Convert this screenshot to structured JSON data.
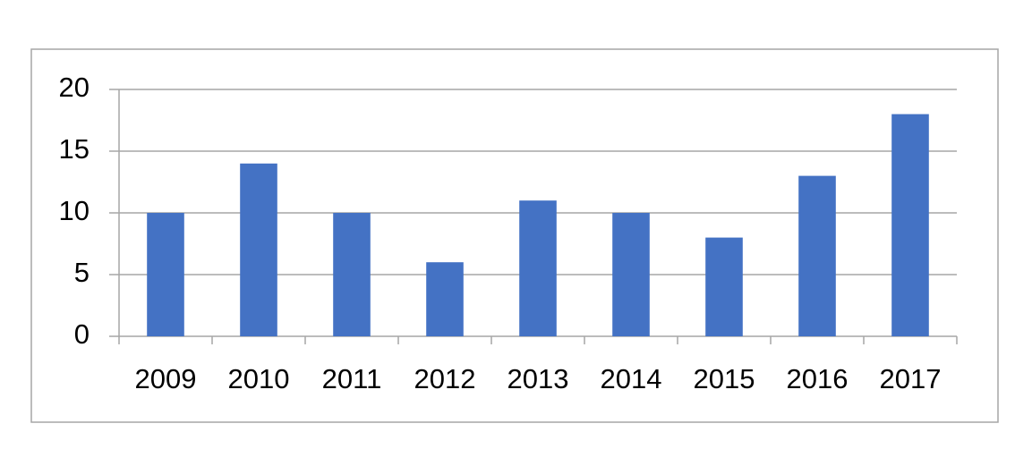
{
  "chart_data": {
    "type": "bar",
    "categories": [
      "2009",
      "2010",
      "2011",
      "2012",
      "2013",
      "2014",
      "2015",
      "2016",
      "2017"
    ],
    "values": [
      10,
      14,
      10,
      6,
      11,
      10,
      8,
      13,
      18
    ],
    "color": "#4472c4",
    "ylim": [
      0,
      20
    ],
    "yticks": [
      0,
      5,
      10,
      15,
      20
    ],
    "grid": true
  }
}
